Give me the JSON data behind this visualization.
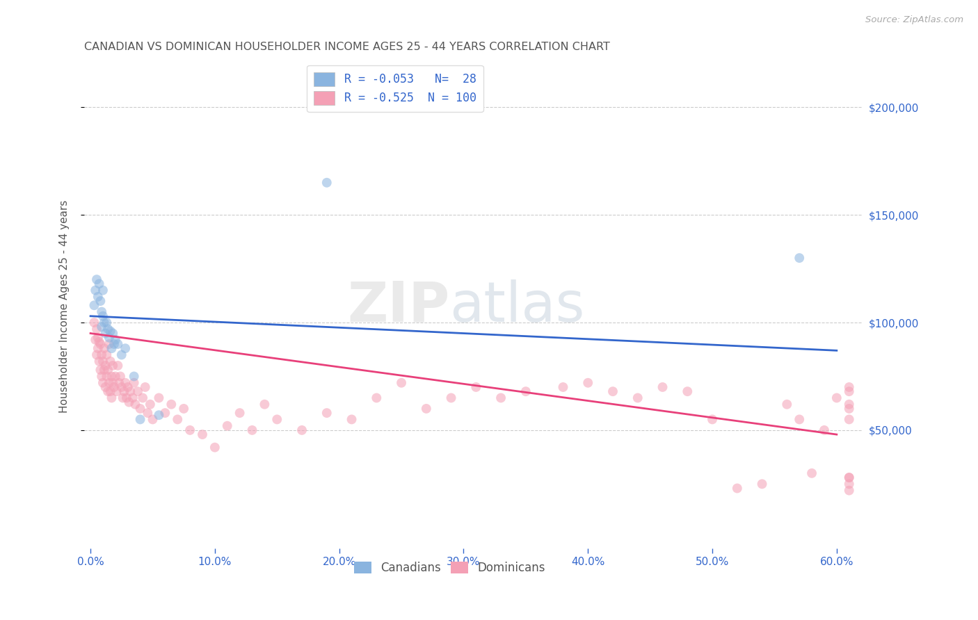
{
  "title": "CANADIAN VS DOMINICAN HOUSEHOLDER INCOME AGES 25 - 44 YEARS CORRELATION CHART",
  "source": "Source: ZipAtlas.com",
  "ylabel": "Householder Income Ages 25 - 44 years",
  "xlabel_ticks": [
    "0.0%",
    "10.0%",
    "20.0%",
    "30.0%",
    "40.0%",
    "50.0%",
    "60.0%"
  ],
  "xlabel_vals": [
    0.0,
    0.1,
    0.2,
    0.3,
    0.4,
    0.5,
    0.6
  ],
  "ylabel_ticks": [
    "$50,000",
    "$100,000",
    "$150,000",
    "$200,000"
  ],
  "ylabel_vals": [
    50000,
    100000,
    150000,
    200000
  ],
  "ylim": [
    -5000,
    220000
  ],
  "xlim": [
    -0.005,
    0.62
  ],
  "canadian_R": -0.053,
  "canadian_N": 28,
  "dominican_R": -0.525,
  "dominican_N": 100,
  "canadian_color": "#8ab4df",
  "dominican_color": "#f4a0b5",
  "canadian_line_color": "#3366cc",
  "dominican_line_color": "#e8407a",
  "background_color": "#ffffff",
  "grid_color": "#cccccc",
  "title_color": "#555555",
  "source_color": "#aaaaaa",
  "legend_text_color": "#3366cc",
  "right_label_color": "#3366cc",
  "canadians_x": [
    0.003,
    0.004,
    0.005,
    0.006,
    0.007,
    0.008,
    0.009,
    0.009,
    0.01,
    0.01,
    0.011,
    0.012,
    0.013,
    0.014,
    0.015,
    0.016,
    0.017,
    0.018,
    0.019,
    0.02,
    0.022,
    0.025,
    0.028,
    0.035,
    0.04,
    0.055,
    0.19,
    0.57
  ],
  "canadians_y": [
    108000,
    115000,
    120000,
    112000,
    118000,
    110000,
    105000,
    98000,
    103000,
    115000,
    100000,
    95000,
    100000,
    97000,
    93000,
    96000,
    88000,
    95000,
    90000,
    92000,
    90000,
    85000,
    88000,
    75000,
    55000,
    57000,
    165000,
    130000
  ],
  "dominicans_x": [
    0.003,
    0.004,
    0.005,
    0.005,
    0.006,
    0.006,
    0.007,
    0.007,
    0.008,
    0.008,
    0.009,
    0.009,
    0.01,
    0.01,
    0.011,
    0.011,
    0.012,
    0.012,
    0.013,
    0.013,
    0.014,
    0.014,
    0.015,
    0.015,
    0.016,
    0.016,
    0.017,
    0.017,
    0.018,
    0.018,
    0.019,
    0.02,
    0.021,
    0.022,
    0.023,
    0.024,
    0.025,
    0.026,
    0.027,
    0.028,
    0.029,
    0.03,
    0.031,
    0.032,
    0.034,
    0.035,
    0.036,
    0.038,
    0.04,
    0.042,
    0.044,
    0.046,
    0.048,
    0.05,
    0.055,
    0.06,
    0.065,
    0.07,
    0.075,
    0.08,
    0.09,
    0.1,
    0.11,
    0.12,
    0.13,
    0.14,
    0.15,
    0.17,
    0.19,
    0.21,
    0.23,
    0.25,
    0.27,
    0.29,
    0.31,
    0.33,
    0.35,
    0.38,
    0.4,
    0.42,
    0.44,
    0.46,
    0.48,
    0.5,
    0.52,
    0.54,
    0.56,
    0.57,
    0.58,
    0.59,
    0.6,
    0.61,
    0.61,
    0.61,
    0.61,
    0.61,
    0.61,
    0.61,
    0.61,
    0.61
  ],
  "dominicans_y": [
    100000,
    92000,
    85000,
    97000,
    88000,
    93000,
    82000,
    91000,
    78000,
    90000,
    85000,
    75000,
    82000,
    72000,
    88000,
    78000,
    80000,
    70000,
    85000,
    75000,
    78000,
    68000,
    90000,
    72000,
    82000,
    68000,
    75000,
    65000,
    72000,
    80000,
    70000,
    75000,
    68000,
    80000,
    72000,
    75000,
    70000,
    65000,
    68000,
    72000,
    65000,
    70000,
    63000,
    68000,
    65000,
    72000,
    62000,
    68000,
    60000,
    65000,
    70000,
    58000,
    62000,
    55000,
    65000,
    58000,
    62000,
    55000,
    60000,
    50000,
    48000,
    42000,
    52000,
    58000,
    50000,
    62000,
    55000,
    50000,
    58000,
    55000,
    65000,
    72000,
    60000,
    65000,
    70000,
    65000,
    68000,
    70000,
    72000,
    68000,
    65000,
    70000,
    68000,
    55000,
    23000,
    25000,
    62000,
    55000,
    30000,
    50000,
    65000,
    60000,
    68000,
    22000,
    25000,
    70000,
    62000,
    55000,
    28000,
    28000
  ],
  "watermark_top": "ZIP",
  "watermark_bottom": "atlas",
  "marker_size": 100,
  "marker_alpha": 0.55,
  "line_width": 2.0,
  "dpi": 100,
  "figsize": [
    14.06,
    8.92
  ]
}
